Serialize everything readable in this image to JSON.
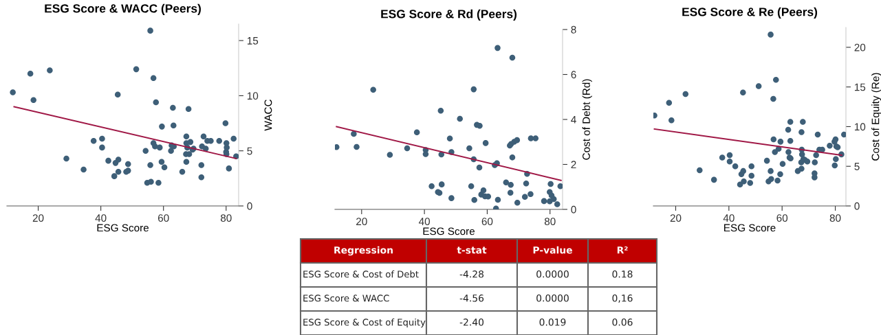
{
  "chart_data": [
    {
      "type": "scatter",
      "title": "ESG Score & WACC (Peers)",
      "xlabel": "ESG Score",
      "ylabel": "WACC",
      "xlim": [
        10,
        84
      ],
      "ylim": [
        0,
        16.5
      ],
      "xticks": [
        20,
        40,
        60,
        80
      ],
      "yticks": [
        0,
        5,
        10,
        15
      ],
      "grid": false,
      "series": [
        {
          "type": "scatter",
          "marker": "circle",
          "color": "#3e5f78",
          "x": [
            11.9,
            17.5,
            18.5,
            23.7,
            29.0,
            34.5,
            37.7,
            40.4,
            40.4,
            42.4,
            44.7,
            45.4,
            45.6,
            45.6,
            44.3,
            48.1,
            48.7,
            48.7,
            51.3,
            54.3,
            54.8,
            55.8,
            55.8,
            56.0,
            56.8,
            56.8,
            57.3,
            57.6,
            58.4,
            58.8,
            59.4,
            59.5,
            60.3,
            62.4,
            62.6,
            63.0,
            63.2,
            63.3,
            66.0,
            67.3,
            67.2,
            67.3,
            67.3,
            67.6,
            68.0,
            68.2,
            68.6,
            69.3,
            69.6,
            72.1,
            72.1,
            72.3,
            72.8,
            73.5,
            74.0,
            75.1,
            77.8,
            79.8,
            80.0,
            80.1,
            80.1,
            80.2,
            80.9,
            82.4,
            83.2
          ],
          "values": [
            10.3,
            12.0,
            9.6,
            12.3,
            4.3,
            3.3,
            5.9,
            6.1,
            5.3,
            4.1,
            3.9,
            10.1,
            4.2,
            3.1,
            2.7,
            3.1,
            3.8,
            3.2,
            12.4,
            5.0,
            2.1,
            15.9,
            3.7,
            2.2,
            11.6,
            5.7,
            5.4,
            9.4,
            2.1,
            5.3,
            4.0,
            7.2,
            3.5,
            5.0,
            5.5,
            8.9,
            7.3,
            5.4,
            3.1,
            4.0,
            4.7,
            5.7,
            6.3,
            5.3,
            8.8,
            4.7,
            5.8,
            5.1,
            5.2,
            3.7,
            2.6,
            5.4,
            6.3,
            5.2,
            5.9,
            5.9,
            5.9,
            7.5,
            4.9,
            4.7,
            5.7,
            5.3,
            3.4,
            6.1,
            4.5
          ]
        },
        {
          "type": "line",
          "marker": "none",
          "color": "#a01846",
          "x": [
            12.3,
            83.2
          ],
          "values": [
            9.0,
            4.3
          ]
        }
      ]
    },
    {
      "type": "scatter",
      "title": "ESG Score & Rd (Peers)",
      "xlabel": "ESG Score",
      "ylabel": "Cost of Debt (Rd)",
      "xlim": [
        11.5,
        84
      ],
      "ylim": [
        0,
        8
      ],
      "xticks": [
        20,
        40,
        60,
        80
      ],
      "yticks": [
        0,
        2,
        4,
        6,
        8
      ],
      "grid": false,
      "series": [
        {
          "type": "scatter",
          "marker": "circle",
          "color": "#3e5f78",
          "x": [
            12.0,
            17.5,
            18.4,
            23.7,
            29.0,
            34.5,
            37.6,
            40.4,
            40.4,
            42.3,
            44.3,
            44.8,
            45.2,
            45.4,
            45.5,
            48.1,
            48.6,
            48.6,
            51.3,
            54.3,
            54.9,
            55.7,
            55.7,
            55.9,
            56.7,
            57.6,
            57.5,
            58.1,
            58.8,
            59.3,
            59.5,
            60.3,
            62.4,
            62.8,
            63.1,
            63.3,
            63.4,
            66.0,
            67.2,
            67.4,
            67.5,
            67.6,
            68.0,
            68.0,
            68.6,
            69.5,
            69.6,
            72.0,
            72.4,
            72.7,
            73.8,
            73.9,
            75.4,
            78.1,
            79.9,
            79.9,
            80.2,
            80.5,
            81.2,
            82.3,
            83.3
          ],
          "values": [
            2.77,
            3.36,
            2.78,
            5.32,
            2.43,
            2.72,
            3.43,
            2.64,
            2.46,
            1.03,
            0.77,
            0.73,
            4.39,
            2.44,
            1.11,
            3.15,
            0.5,
            2.55,
            4.03,
            2.72,
            1.03,
            5.34,
            2.23,
            0.42,
            3.76,
            3.72,
            1.86,
            0.66,
            0.85,
            0.58,
            2.95,
            0.57,
            1.97,
            0.04,
            2.05,
            7.18,
            0.43,
            1.2,
            2.84,
            0.74,
            1.09,
            2.91,
            6.75,
            2.31,
            3.01,
            3.08,
            0.3,
            0.56,
            1.15,
            1.58,
            0.68,
            3.16,
            3.16,
            0.37,
            0.36,
            0.77,
            1.13,
            0.62,
            0.46,
            0.23,
            1.03
          ]
        },
        {
          "type": "line",
          "marker": "none",
          "color": "#a01846",
          "x": [
            12.0,
            83.5
          ],
          "values": [
            3.68,
            1.29
          ]
        }
      ]
    },
    {
      "type": "scatter",
      "title": "ESG Score & Re (Peers)",
      "xlabel": "ESG Score",
      "ylabel": "Cost of Equity (Re)",
      "xlim": [
        11.6,
        84
      ],
      "ylim": [
        0,
        22.5
      ],
      "xticks": [
        20,
        40,
        60,
        80
      ],
      "yticks": [
        0,
        5,
        10,
        15,
        20
      ],
      "grid": false,
      "series": [
        {
          "type": "scatter",
          "marker": "circle",
          "color": "#3e5f78",
          "x": [
            12.0,
            17.5,
            18.4,
            23.7,
            29.0,
            34.4,
            37.5,
            40.3,
            40.3,
            42.4,
            44.2,
            44.7,
            45.3,
            45.4,
            45.6,
            48.0,
            48.5,
            48.5,
            51.2,
            54.3,
            54.9,
            55.7,
            55.7,
            55.9,
            56.7,
            56.8,
            57.3,
            57.7,
            58.3,
            58.7,
            59.3,
            59.4,
            60.2,
            62.3,
            62.4,
            62.8,
            63.1,
            63.1,
            63.2,
            65.9,
            67.2,
            67.3,
            67.3,
            67.4,
            67.5,
            67.8,
            68.0,
            68.6,
            69.5,
            72.2,
            72.2,
            72.3,
            72.8,
            73.4,
            74.0,
            75.1,
            77.9,
            79.7,
            79.8,
            80.1,
            80.2,
            80.4,
            80.9,
            82.3,
            83.3
          ],
          "values": [
            11.4,
            13.0,
            10.8,
            14.1,
            4.5,
            3.3,
            6.1,
            6.4,
            5.6,
            5.0,
            2.7,
            4.0,
            14.3,
            4.4,
            3.1,
            2.9,
            3.8,
            5.0,
            15.1,
            5.7,
            3.1,
            21.6,
            4.4,
            3.4,
            13.5,
            8.4,
            6.8,
            15.9,
            3.2,
            7.2,
            4.0,
            8.1,
            5.3,
            9.6,
            6.8,
            6.1,
            8.2,
            10.6,
            6.0,
            4.4,
            5.5,
            9.3,
            4.7,
            7.1,
            6.5,
            10.6,
            5.9,
            5.8,
            5.6,
            4.1,
            3.6,
            5.5,
            6.4,
            9.0,
            7.1,
            7.1,
            7.6,
            8.1,
            5.1,
            8.4,
            5.9,
            7.5,
            7.4,
            6.5,
            9.0
          ]
        },
        {
          "type": "line",
          "marker": "none",
          "color": "#a01846",
          "x": [
            12.0,
            82.4
          ],
          "values": [
            9.7,
            6.4
          ]
        }
      ]
    },
    {
      "type": "other",
      "color": "#c00000",
      "annotations": [
        "Regression",
        "t-stat",
        "P-value",
        "R²",
        "ESG Score & Cost of Debt",
        "-4.28",
        "0.0000",
        "0.18",
        "ESG Score & WACC",
        "-4.56",
        "0.0000",
        "0,16",
        "ESG Score & Cost of Equity",
        "-2.40",
        "0.019",
        "0.06"
      ]
    }
  ]
}
